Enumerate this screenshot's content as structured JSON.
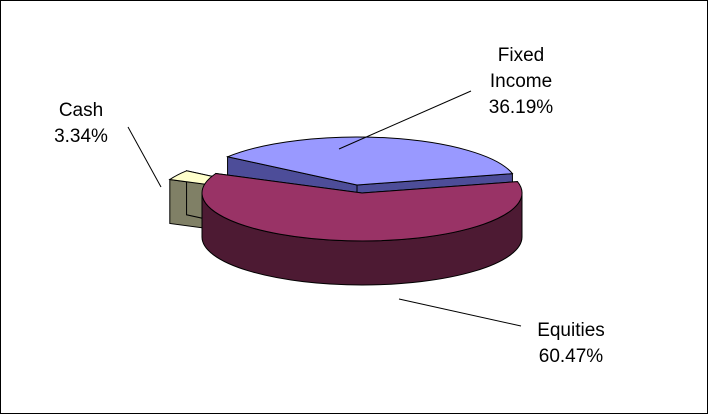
{
  "chart_data": {
    "type": "pie",
    "three_d": true,
    "exploded": true,
    "title": "",
    "legend": "none",
    "slices": [
      {
        "name": "Fixed Income",
        "value": 36.19,
        "label_lines": [
          "Fixed",
          "Income"
        ],
        "pct_label": "36.19%",
        "top_color": "#9999ff",
        "side_color": "#4d4d99"
      },
      {
        "name": "Equities",
        "value": 60.47,
        "label_lines": [
          "Equities"
        ],
        "pct_label": "60.47%",
        "top_color": "#993366",
        "side_color": "#4d1a33"
      },
      {
        "name": "Cash",
        "value": 3.34,
        "label_lines": [
          "Cash"
        ],
        "pct_label": "3.34%",
        "top_color": "#ffffcc",
        "side_color": "#808066"
      }
    ]
  }
}
